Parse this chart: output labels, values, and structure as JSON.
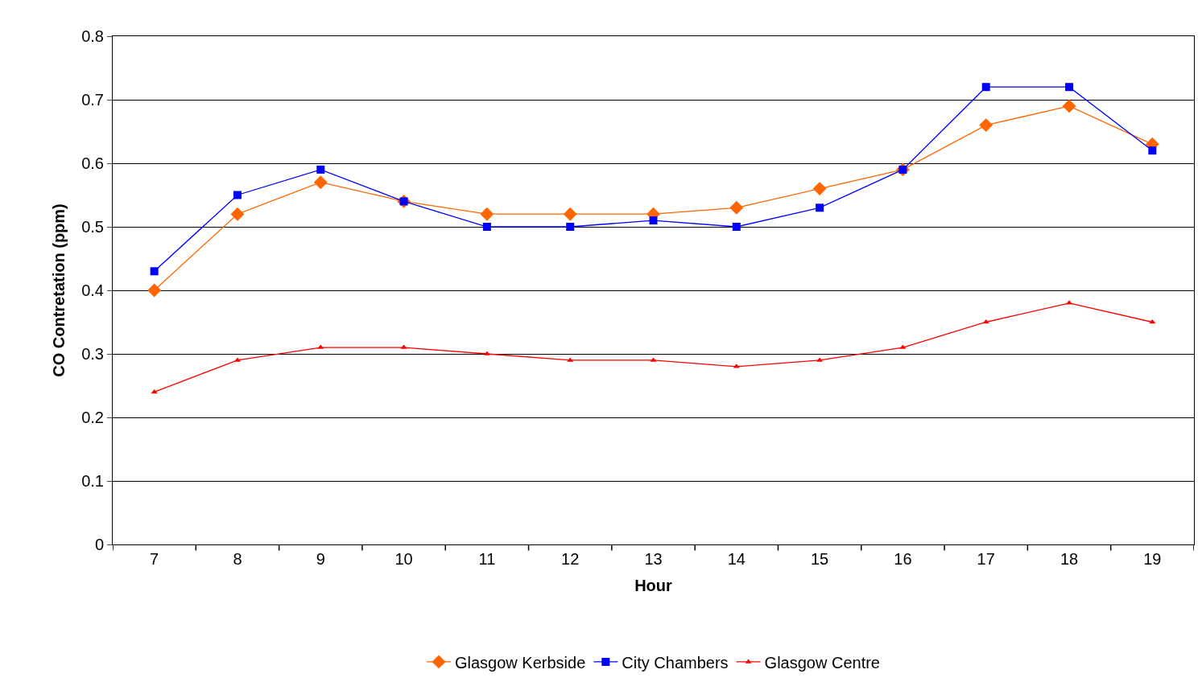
{
  "chart_data": {
    "type": "line",
    "xlabel": "Hour",
    "ylabel": "CO Contretation (ppm)",
    "categories": [
      "7",
      "8",
      "9",
      "10",
      "11",
      "12",
      "13",
      "14",
      "15",
      "16",
      "17",
      "18",
      "19"
    ],
    "series": [
      {
        "name": "Glasgow Kerbside",
        "color": "#ff6600",
        "marker": "diamond",
        "values": [
          0.4,
          0.52,
          0.57,
          0.54,
          0.52,
          0.52,
          0.52,
          0.53,
          0.56,
          0.59,
          0.66,
          0.69,
          0.63
        ]
      },
      {
        "name": "City Chambers",
        "color": "#0000ff",
        "marker": "square",
        "values": [
          0.43,
          0.55,
          0.59,
          0.54,
          0.5,
          0.5,
          0.51,
          0.5,
          0.53,
          0.59,
          0.72,
          0.72,
          0.62
        ]
      },
      {
        "name": "Glasgow Centre",
        "color": "#ff0000",
        "marker": "triangle",
        "values": [
          0.24,
          0.29,
          0.31,
          0.31,
          0.3,
          0.29,
          0.29,
          0.28,
          0.29,
          0.31,
          0.35,
          0.38,
          0.35
        ]
      }
    ],
    "ylim": [
      0,
      0.8
    ],
    "yticks": [
      {
        "value": 0,
        "label": "0"
      },
      0.1,
      0.2,
      0.3,
      0.4,
      0.5,
      0.6,
      0.7,
      0.8
    ],
    "grid": "y",
    "legend": "bottom",
    "line_style": "solid"
  }
}
